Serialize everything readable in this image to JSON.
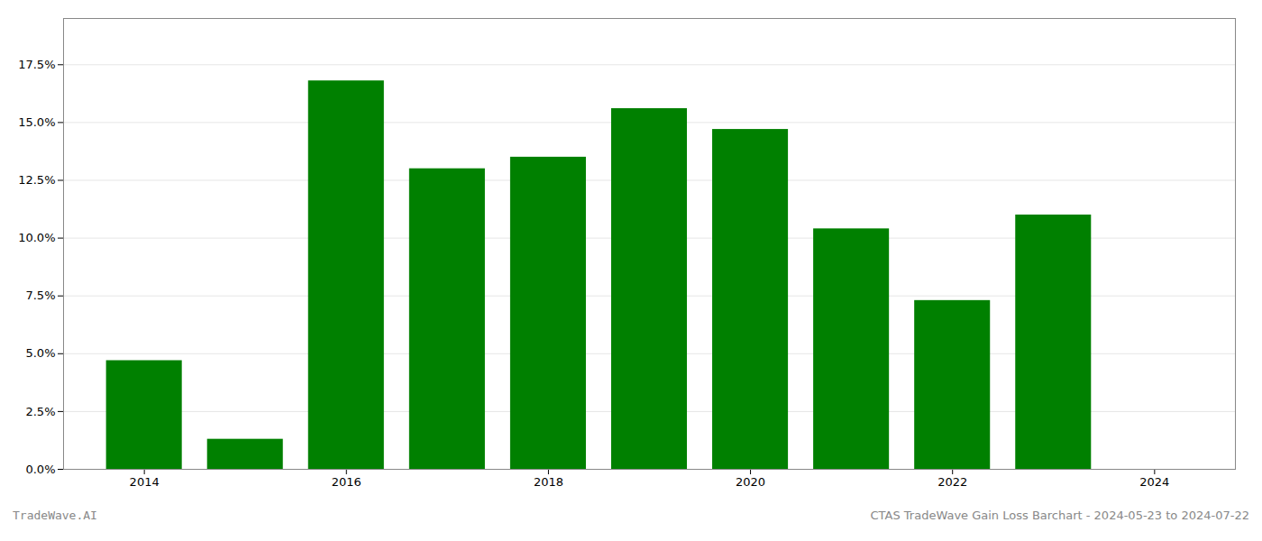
{
  "chart_data": {
    "type": "bar",
    "x": [
      2014,
      2015,
      2016,
      2017,
      2018,
      2019,
      2020,
      2021,
      2022,
      2023
    ],
    "values": [
      0.047,
      0.013,
      0.168,
      0.13,
      0.135,
      0.156,
      0.147,
      0.104,
      0.073,
      0.11
    ],
    "color": "#008000",
    "xlim": [
      2013.2,
      2024.8
    ],
    "xticks": [
      2014,
      2016,
      2018,
      2020,
      2022,
      2024
    ],
    "ylim": [
      0.0,
      0.195
    ],
    "yticks": [
      {
        "value": 0.0,
        "label": "0.0%"
      },
      {
        "value": 0.025,
        "label": "2.5%"
      },
      {
        "value": 0.05,
        "label": "5.0%"
      },
      {
        "value": 0.075,
        "label": "7.5%"
      },
      {
        "value": 0.1,
        "label": "10.0%"
      },
      {
        "value": 0.125,
        "label": "12.5%"
      },
      {
        "value": 0.15,
        "label": "15.0%"
      },
      {
        "value": 0.175,
        "label": "17.5%"
      }
    ],
    "grid": true,
    "annotations": [
      "TradeWave.AI",
      "CTAS TradeWave Gain Loss Barchart - 2024-05-23 to 2024-07-22"
    ]
  }
}
